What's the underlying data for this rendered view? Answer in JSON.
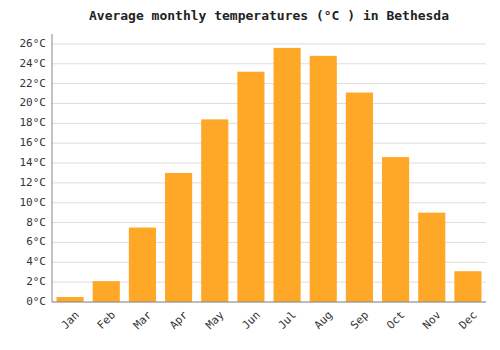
{
  "chart_data": {
    "type": "bar",
    "title": "Average monthly temperatures (°C ) in Bethesda",
    "categories": [
      "Jan",
      "Feb",
      "Mar",
      "Apr",
      "May",
      "Jun",
      "Jul",
      "Aug",
      "Sep",
      "Oct",
      "Nov",
      "Dec"
    ],
    "values": [
      0.5,
      2.1,
      7.5,
      13.0,
      18.4,
      23.2,
      25.6,
      24.8,
      21.1,
      14.6,
      9.0,
      3.1
    ],
    "color": "#FFA726",
    "ylim": [
      0,
      27
    ],
    "yticks": [
      {
        "value": 0,
        "label": "0°C"
      },
      {
        "value": 2,
        "label": "2°C"
      },
      {
        "value": 4,
        "label": "4°C"
      },
      {
        "value": 6,
        "label": "6°C"
      },
      {
        "value": 8,
        "label": "8°C"
      },
      {
        "value": 10,
        "label": "10°C"
      },
      {
        "value": 12,
        "label": "12°C"
      },
      {
        "value": 14,
        "label": "14°C"
      },
      {
        "value": 16,
        "label": "16°C"
      },
      {
        "value": 18,
        "label": "18°C"
      },
      {
        "value": 20,
        "label": "20°C"
      },
      {
        "value": 22,
        "label": "22°C"
      },
      {
        "value": 24,
        "label": "24°C"
      },
      {
        "value": 26,
        "label": "26°C"
      }
    ],
    "grid": true
  }
}
